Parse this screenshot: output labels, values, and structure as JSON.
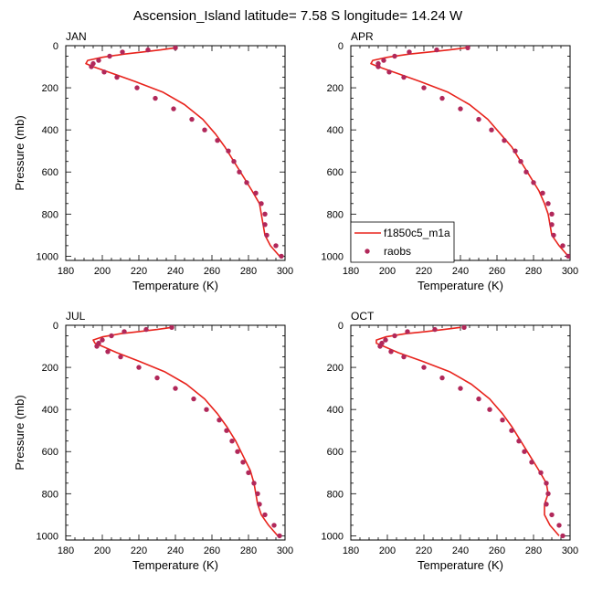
{
  "figure_title": "Ascension_Island  latitude= 7.58 S longitude= 14.24 W",
  "colors": {
    "model": "#e8231c",
    "obs": "#b1285a",
    "axis": "#000000"
  },
  "legend": {
    "model_label": "f1850c5_m1a",
    "obs_label": "raobs",
    "placement": "inside-lower-left of APR panel"
  },
  "chart_data": [
    {
      "type": "line",
      "panel_label": "JAN",
      "xlabel": "Temperature (K)",
      "ylabel": "Pressure (mb)",
      "xlim": [
        180,
        300
      ],
      "ylim": [
        0,
        1020
      ],
      "y_inverted": true,
      "xticks": [
        180,
        200,
        220,
        240,
        260,
        280,
        300
      ],
      "yticks": [
        0,
        200,
        400,
        600,
        800,
        1000
      ],
      "series": [
        {
          "name": "f1850c5_m1a",
          "style": "line",
          "x": [
            240,
            232,
            222,
            212,
            200,
            192,
            191,
            195,
            205,
            218,
            233,
            245,
            255,
            262,
            267,
            272,
            277,
            282,
            286,
            287,
            288,
            289,
            292,
            297
          ],
          "y": [
            10,
            20,
            30,
            40,
            55,
            70,
            85,
            100,
            130,
            170,
            220,
            280,
            350,
            420,
            480,
            550,
            620,
            690,
            750,
            800,
            850,
            900,
            950,
            1000
          ]
        },
        {
          "name": "raobs",
          "style": "markers",
          "x": [
            240,
            225,
            211,
            204,
            198,
            195,
            194,
            201,
            208,
            219,
            229,
            239,
            249,
            256,
            263,
            269,
            272,
            275,
            279,
            284,
            287,
            289,
            289,
            290,
            295,
            298
          ],
          "y": [
            10,
            20,
            30,
            50,
            70,
            85,
            100,
            125,
            150,
            200,
            250,
            300,
            350,
            400,
            450,
            500,
            550,
            600,
            650,
            700,
            750,
            800,
            850,
            900,
            950,
            1000
          ]
        }
      ]
    },
    {
      "type": "line",
      "panel_label": "APR",
      "xlabel": "Temperature (K)",
      "ylabel": "",
      "xlim": [
        180,
        300
      ],
      "ylim": [
        0,
        1020
      ],
      "y_inverted": true,
      "xticks": [
        180,
        200,
        220,
        240,
        260,
        280,
        300
      ],
      "yticks": [
        0,
        200,
        400,
        600,
        800,
        1000
      ],
      "series": [
        {
          "name": "f1850c5_m1a",
          "style": "line",
          "x": [
            243,
            234,
            223,
            212,
            200,
            192,
            191,
            195,
            205,
            218,
            233,
            245,
            255,
            262,
            268,
            273,
            278,
            283,
            286,
            288,
            289,
            290,
            294,
            299
          ],
          "y": [
            10,
            20,
            30,
            40,
            55,
            70,
            85,
            100,
            130,
            170,
            220,
            280,
            350,
            420,
            480,
            550,
            620,
            690,
            750,
            800,
            850,
            900,
            950,
            1000
          ]
        },
        {
          "name": "raobs",
          "style": "markers",
          "x": [
            244,
            227,
            212,
            204,
            198,
            195,
            195,
            201,
            209,
            220,
            230,
            240,
            250,
            257,
            264,
            270,
            273,
            276,
            280,
            285,
            288,
            290,
            290,
            291,
            296,
            299
          ],
          "y": [
            10,
            20,
            30,
            50,
            70,
            85,
            100,
            125,
            150,
            200,
            250,
            300,
            350,
            400,
            450,
            500,
            550,
            600,
            650,
            700,
            750,
            800,
            850,
            900,
            950,
            1000
          ]
        }
      ]
    },
    {
      "type": "line",
      "panel_label": "JUL",
      "xlabel": "Temperature (K)",
      "ylabel": "Pressure (mb)",
      "xlim": [
        180,
        300
      ],
      "ylim": [
        0,
        1020
      ],
      "y_inverted": true,
      "xticks": [
        180,
        200,
        220,
        240,
        260,
        280,
        300
      ],
      "yticks": [
        0,
        200,
        400,
        600,
        800,
        1000
      ],
      "series": [
        {
          "name": "f1850c5_m1a",
          "style": "line",
          "x": [
            238,
            230,
            220,
            210,
            200,
            195,
            196,
            200,
            208,
            220,
            234,
            246,
            256,
            263,
            268,
            273,
            277,
            281,
            283,
            284,
            285,
            287,
            291,
            296
          ],
          "y": [
            10,
            20,
            30,
            40,
            55,
            70,
            85,
            100,
            130,
            170,
            220,
            280,
            350,
            420,
            480,
            550,
            620,
            690,
            750,
            800,
            850,
            900,
            950,
            1000
          ]
        },
        {
          "name": "raobs",
          "style": "markers",
          "x": [
            238,
            224,
            212,
            205,
            200,
            198,
            197,
            203,
            210,
            220,
            230,
            240,
            250,
            257,
            264,
            268,
            271,
            274,
            277,
            280,
            283,
            285,
            286,
            289,
            294,
            297
          ],
          "y": [
            10,
            20,
            30,
            50,
            70,
            85,
            100,
            125,
            150,
            200,
            250,
            300,
            350,
            400,
            450,
            500,
            550,
            600,
            650,
            700,
            750,
            800,
            850,
            900,
            950,
            1000
          ]
        }
      ]
    },
    {
      "type": "line",
      "panel_label": "OCT",
      "xlabel": "Temperature (K)",
      "ylabel": "",
      "xlim": [
        180,
        300
      ],
      "ylim": [
        0,
        1020
      ],
      "y_inverted": true,
      "xticks": [
        180,
        200,
        220,
        240,
        260,
        280,
        300
      ],
      "yticks": [
        0,
        200,
        400,
        600,
        800,
        1000
      ],
      "series": [
        {
          "name": "f1850c5_m1a",
          "style": "line",
          "x": [
            240,
            231,
            221,
            210,
            199,
            194,
            194,
            198,
            206,
            219,
            234,
            246,
            256,
            263,
            268,
            273,
            278,
            283,
            287,
            288,
            286,
            286,
            289,
            294
          ],
          "y": [
            10,
            20,
            30,
            40,
            55,
            70,
            85,
            100,
            130,
            170,
            220,
            280,
            350,
            420,
            480,
            550,
            620,
            690,
            750,
            800,
            850,
            900,
            950,
            1000
          ]
        },
        {
          "name": "raobs",
          "style": "markers",
          "x": [
            242,
            226,
            211,
            204,
            199,
            197,
            196,
            202,
            209,
            220,
            230,
            240,
            250,
            256,
            263,
            268,
            272,
            275,
            279,
            284,
            287,
            288,
            287,
            290,
            294,
            296
          ],
          "y": [
            10,
            20,
            30,
            50,
            70,
            85,
            100,
            125,
            150,
            200,
            250,
            300,
            350,
            400,
            450,
            500,
            550,
            600,
            650,
            700,
            750,
            800,
            850,
            900,
            950,
            1000
          ]
        }
      ]
    }
  ]
}
